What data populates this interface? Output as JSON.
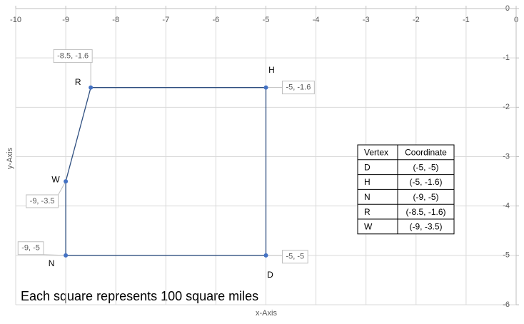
{
  "chart_data": {
    "type": "line",
    "x_label": "x-Axis",
    "y_label": "y-Axis",
    "x": [
      -8.5,
      -5,
      -5,
      -9,
      -9
    ],
    "series": [
      {
        "color": "#2f4f80",
        "values": [
          -1.6,
          -1.6,
          -5,
          -5,
          -3.5
        ],
        "value_labels": [
          "-8.5, -1.6",
          "-5, -1.6",
          "-5, -5",
          "-9, -5",
          "-9, -3.5"
        ]
      }
    ],
    "point_names": [
      "R",
      "H",
      "D",
      "N",
      "W"
    ],
    "closed": true,
    "xlim": [
      -10,
      0
    ],
    "xticks": [
      -10,
      -9,
      -8,
      -7,
      -6,
      -5,
      -4,
      -3,
      -2,
      -1,
      0
    ],
    "ylim": [
      -6,
      0
    ],
    "yticks": [
      0,
      -1,
      -2,
      -3,
      -4,
      -5,
      -6
    ],
    "grid": true,
    "annotation": "Each square represents 100 square miles"
  },
  "table": {
    "header": [
      "Vertex",
      "Coordinate"
    ],
    "rows": [
      [
        "D",
        "(-5, -5)"
      ],
      [
        "H",
        "(-5, -1.6)"
      ],
      [
        "N",
        "(-9, -5)"
      ],
      [
        "R",
        "(-8.5, -1.6)"
      ],
      [
        "W",
        "(-9, -3.5)"
      ]
    ]
  }
}
